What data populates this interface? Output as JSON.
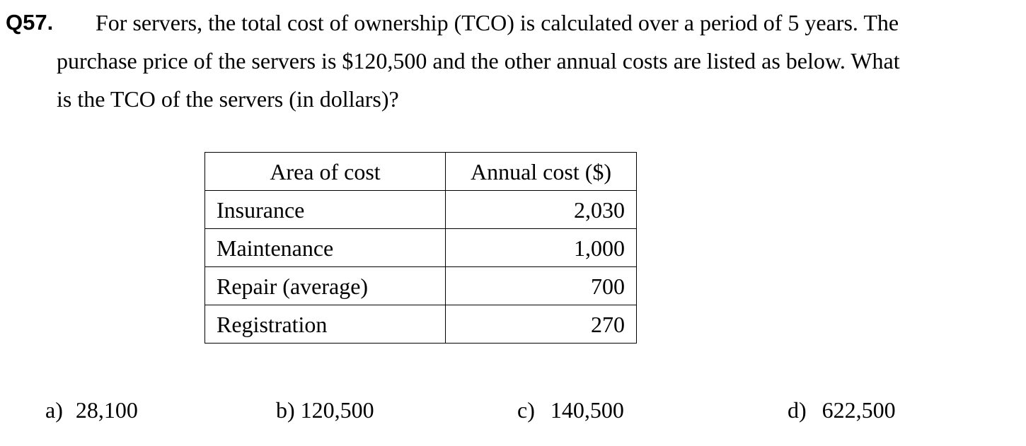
{
  "question": {
    "number": "Q57.",
    "lines": [
      "For servers, the total cost of ownership (TCO) is calculated over a period of 5  years. The",
      "purchase price of the servers is $120,500 and the other annual costs are listed as below. What",
      "is the TCO of the servers (in dollars)?"
    ]
  },
  "table": {
    "headers": [
      "Area of cost",
      "Annual cost ($)"
    ],
    "rows": [
      [
        "Insurance",
        "2,030"
      ],
      [
        "Maintenance",
        "1,000"
      ],
      [
        "Repair (average)",
        "700"
      ],
      [
        "Registration",
        "270"
      ]
    ]
  },
  "options": [
    {
      "label": "a)",
      "value": "28,100"
    },
    {
      "label": "b)",
      "value": "120,500"
    },
    {
      "label": "c)",
      "value": "140,500"
    },
    {
      "label": "d)",
      "value": "622,500"
    }
  ]
}
